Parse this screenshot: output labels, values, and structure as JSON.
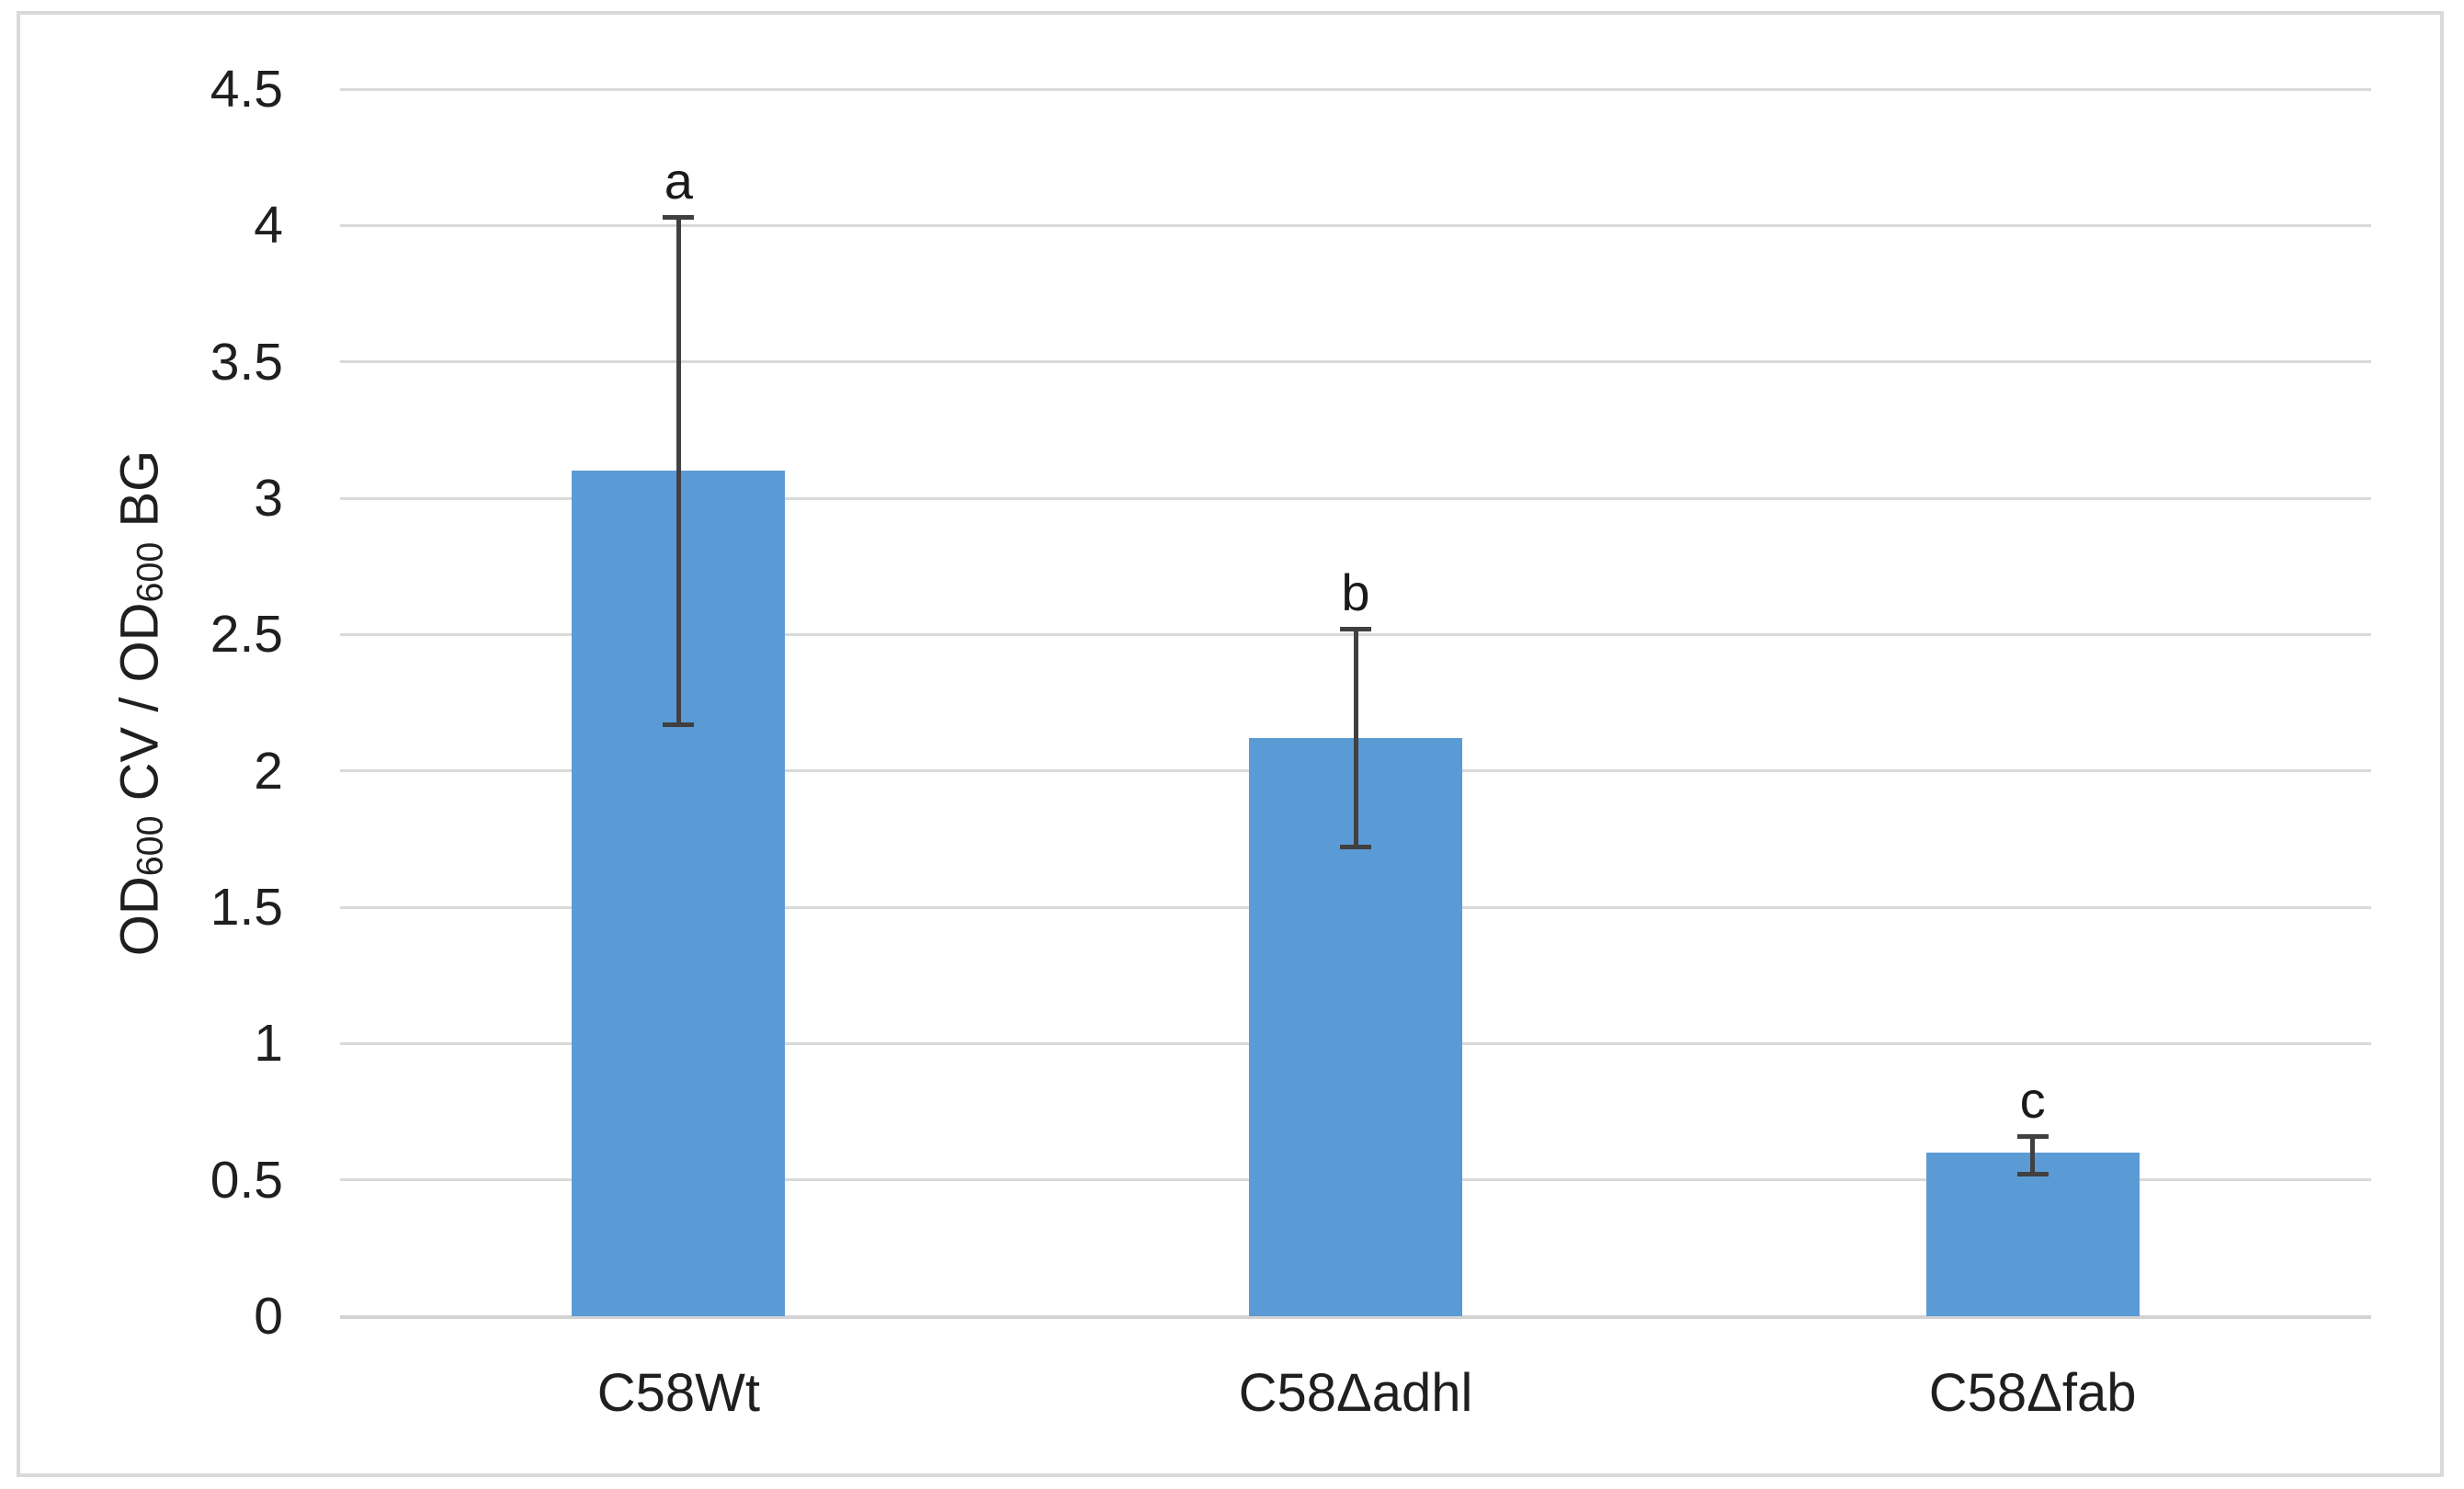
{
  "chart_data": {
    "type": "bar",
    "title": "",
    "categories": [
      "C58Wt",
      "C58Δadhl",
      "C58Δfab"
    ],
    "values": [
      3.1,
      2.12,
      0.6
    ],
    "error_bars": {
      "upper": [
        4.03,
        2.52,
        0.66
      ],
      "lower": [
        2.17,
        1.72,
        0.52
      ]
    },
    "significance_labels": [
      "a",
      "b",
      "c"
    ],
    "xlabel": "",
    "ylabel": "OD600 CV / OD600 BG",
    "ylabel_segments": [
      {
        "text": "OD"
      },
      {
        "text": "600",
        "subscript": true
      },
      {
        "text": " CV / OD"
      },
      {
        "text": "600",
        "subscript": true
      },
      {
        "text": " BG"
      }
    ],
    "ylim": [
      0,
      4.5
    ],
    "ytick_step": 0.5,
    "ytick_labels": [
      "0",
      "0.5",
      "1",
      "1.5",
      "2",
      "2.5",
      "3",
      "3.5",
      "4",
      "4.5"
    ],
    "grid": true,
    "legend": "none",
    "colors": {
      "bar": "#5B9BD5",
      "error_bar": "#404040",
      "gridline": "#D9D9D9",
      "axis_line": "#D3D3D3",
      "text": "#1F1F1F",
      "frame_border": "#D9D9D9",
      "background": "#FFFFFF"
    }
  }
}
